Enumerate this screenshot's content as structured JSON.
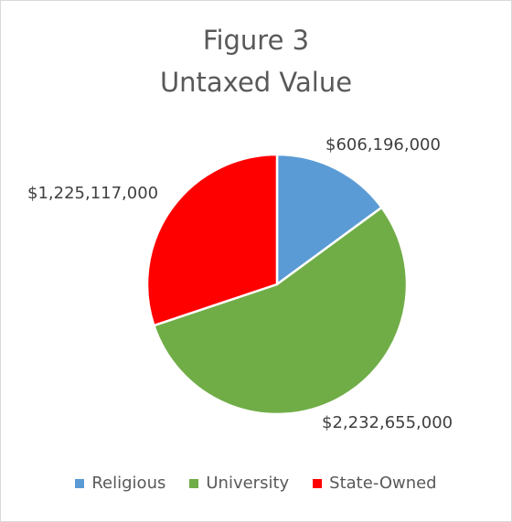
{
  "chart_data": {
    "type": "pie",
    "title": "Figure 3",
    "subtitle": "Untaxed Value",
    "categories": [
      "Religious",
      "University",
      "State-Owned"
    ],
    "values": [
      606196000,
      2232655000,
      1225117000
    ],
    "value_labels": [
      "$606,196,000",
      "$2,232,655,000",
      "$1,225,117,000"
    ],
    "colors": [
      "#5b9bd5",
      "#70ad47",
      "#ff0000"
    ],
    "legend_position": "bottom",
    "start_angle": "top, clockwise"
  }
}
